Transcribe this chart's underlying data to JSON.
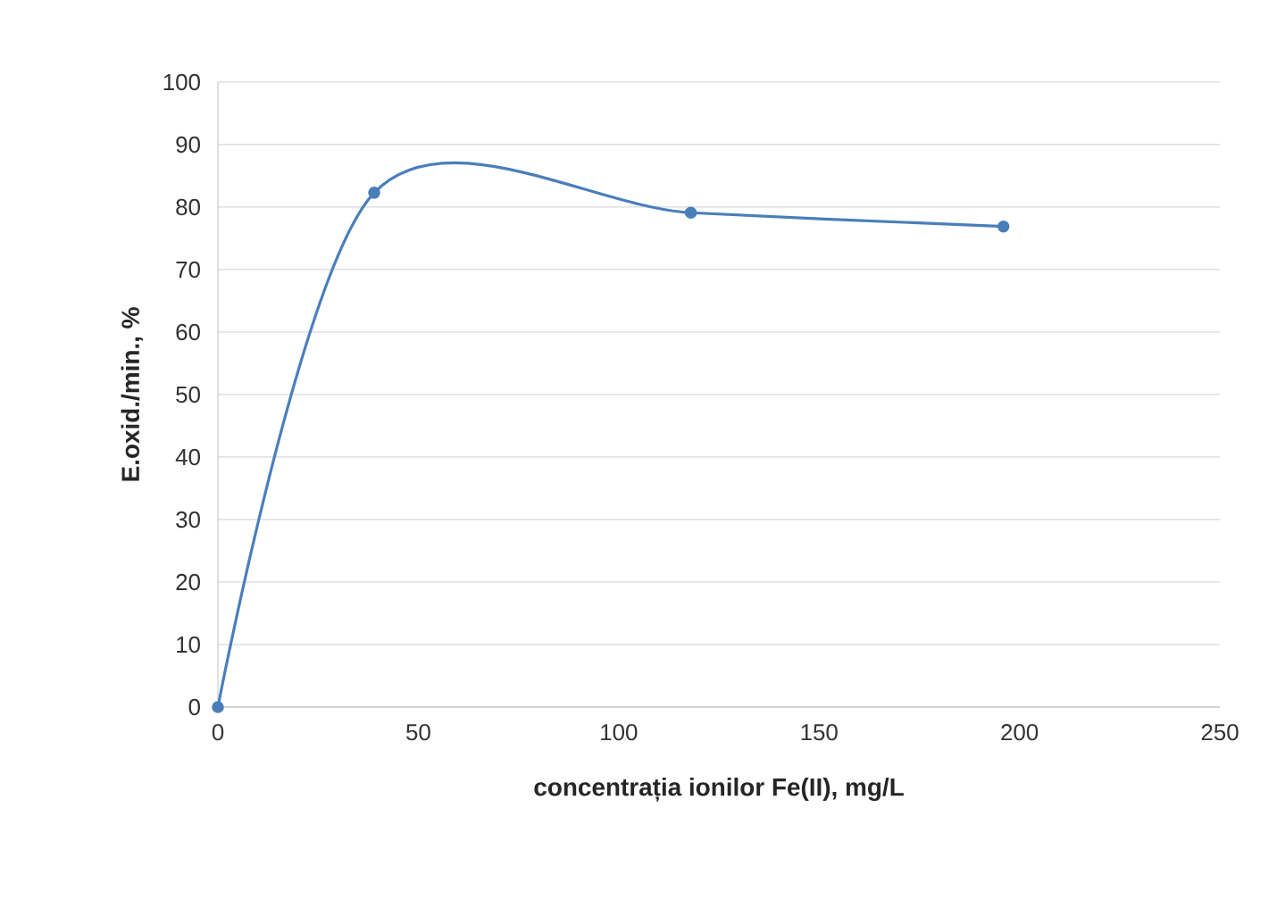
{
  "chart_data": {
    "type": "line",
    "xlabel": "concentrația ionilor Fe(II), mg/L",
    "ylabel": "E.oxid./min., %",
    "x": [
      0,
      39,
      118,
      196
    ],
    "series": [
      {
        "color": "#4a7ebb",
        "values": [
          0,
          82.3,
          79.1,
          76.9
        ]
      }
    ],
    "xlim": [
      0,
      250
    ],
    "xticks": [
      0,
      50,
      100,
      150,
      200,
      250
    ],
    "ylim": [
      0,
      100
    ],
    "yticks": [
      0,
      10,
      20,
      30,
      40,
      50,
      60,
      70,
      80,
      90,
      100
    ],
    "grid": "y",
    "marker": "circle",
    "line_style": "solid"
  }
}
